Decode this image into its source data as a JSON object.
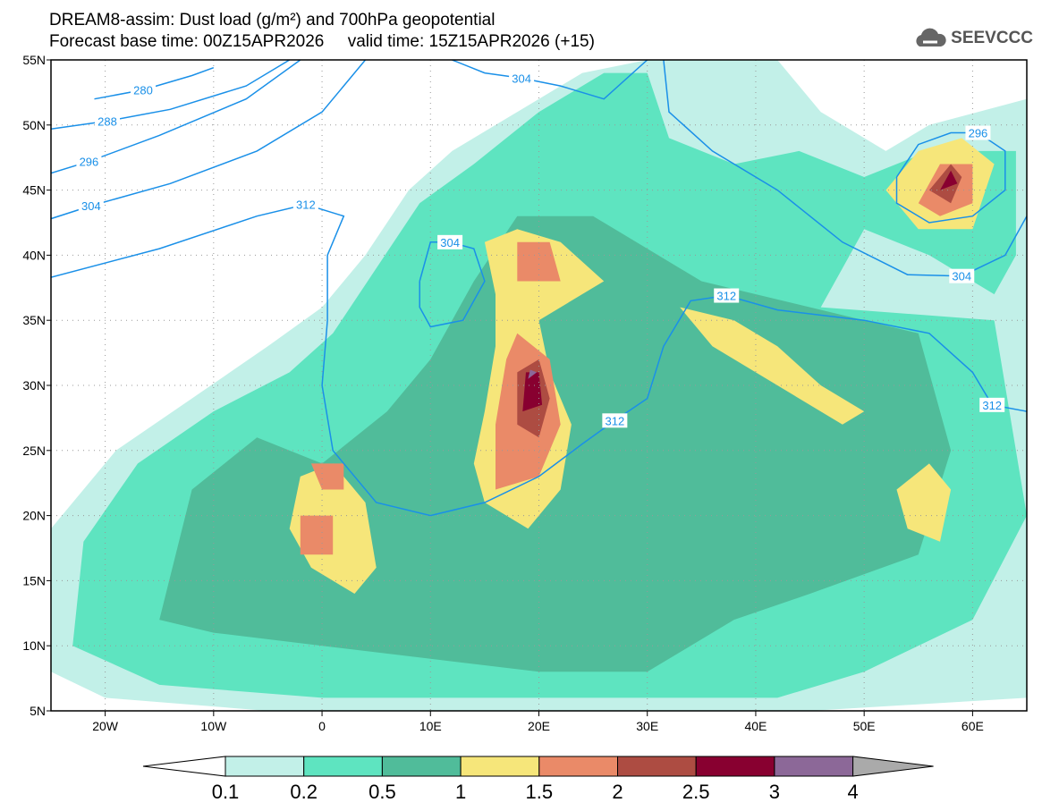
{
  "header": {
    "title": "DREAM8-assim: Dust load (g/m²) and 700hPa geopotential",
    "subtitle": "Forecast base time: 00Z15APR2026     valid time: 15Z15APR2026 (+15)",
    "logo_text": "SEEVCCC"
  },
  "chart_data": {
    "type": "map",
    "lon_range": [
      -25,
      65
    ],
    "lat_range": [
      5,
      55
    ],
    "lat_ticks": [
      {
        "v": 55,
        "l": "55N"
      },
      {
        "v": 50,
        "l": "50N"
      },
      {
        "v": 45,
        "l": "45N"
      },
      {
        "v": 40,
        "l": "40N"
      },
      {
        "v": 35,
        "l": "35N"
      },
      {
        "v": 30,
        "l": "30N"
      },
      {
        "v": 25,
        "l": "25N"
      },
      {
        "v": 20,
        "l": "20N"
      },
      {
        "v": 15,
        "l": "15N"
      },
      {
        "v": 10,
        "l": "10N"
      },
      {
        "v": 5,
        "l": "5N"
      }
    ],
    "lon_ticks": [
      {
        "v": -20,
        "l": "20W"
      },
      {
        "v": -10,
        "l": "10W"
      },
      {
        "v": 0,
        "l": "0"
      },
      {
        "v": 10,
        "l": "10E"
      },
      {
        "v": 20,
        "l": "20E"
      },
      {
        "v": 30,
        "l": "30E"
      },
      {
        "v": 40,
        "l": "40E"
      },
      {
        "v": 50,
        "l": "50E"
      },
      {
        "v": 60,
        "l": "60E"
      }
    ],
    "colorbar": {
      "levels": [
        "0.1",
        "0.2",
        "0.5",
        "1",
        "1.5",
        "2",
        "2.5",
        "3",
        "4"
      ],
      "colors": [
        "#c2f0e8",
        "#5ee4c0",
        "#50bc9a",
        "#f6e67a",
        "#ea8a68",
        "#ad4c42",
        "#880030",
        "#8c6898"
      ],
      "over_color": "#aaaaaa"
    },
    "dust_fields": [
      {
        "level": 0,
        "pts": [
          [
            -25,
            8
          ],
          [
            -25,
            19
          ],
          [
            -19,
            25
          ],
          [
            -12,
            29
          ],
          [
            -5,
            33
          ],
          [
            0,
            36
          ],
          [
            4,
            40
          ],
          [
            8,
            45
          ],
          [
            12,
            48
          ],
          [
            18,
            51
          ],
          [
            24,
            54
          ],
          [
            30,
            55
          ],
          [
            42,
            55
          ],
          [
            46,
            51
          ],
          [
            52,
            48
          ],
          [
            56,
            50
          ],
          [
            65,
            52
          ],
          [
            65,
            6
          ],
          [
            45,
            5
          ],
          [
            36,
            5
          ],
          [
            20,
            5
          ],
          [
            -5,
            5
          ],
          [
            -20,
            6
          ]
        ]
      },
      {
        "level": 1,
        "pts": [
          [
            -23,
            10
          ],
          [
            -22,
            18
          ],
          [
            -17,
            24
          ],
          [
            -10,
            28
          ],
          [
            -3,
            31
          ],
          [
            1,
            34
          ],
          [
            5,
            39
          ],
          [
            9,
            44
          ],
          [
            14,
            47
          ],
          [
            20,
            51
          ],
          [
            26,
            54
          ],
          [
            30,
            54
          ],
          [
            32,
            49
          ],
          [
            38,
            47
          ],
          [
            44,
            48
          ],
          [
            50,
            46
          ],
          [
            56,
            48
          ],
          [
            64,
            48
          ],
          [
            64,
            40
          ],
          [
            62,
            37
          ],
          [
            56,
            40
          ],
          [
            50,
            42
          ],
          [
            46,
            36
          ],
          [
            62,
            35
          ],
          [
            65,
            20
          ],
          [
            60,
            12
          ],
          [
            50,
            8
          ],
          [
            42,
            6
          ],
          [
            35,
            6
          ],
          [
            22,
            6
          ],
          [
            0,
            6
          ],
          [
            -15,
            7
          ]
        ]
      },
      {
        "level": 2,
        "pts": [
          [
            -15,
            12
          ],
          [
            -12,
            22
          ],
          [
            -6,
            26
          ],
          [
            0,
            24
          ],
          [
            6,
            28
          ],
          [
            10,
            32
          ],
          [
            14,
            38
          ],
          [
            18,
            43
          ],
          [
            25,
            43
          ],
          [
            35,
            38
          ],
          [
            45,
            36
          ],
          [
            55,
            34
          ],
          [
            58,
            25
          ],
          [
            55,
            17
          ],
          [
            45,
            14
          ],
          [
            38,
            12
          ],
          [
            30,
            8
          ],
          [
            20,
            8
          ],
          [
            10,
            9
          ],
          [
            0,
            10
          ],
          [
            -10,
            11
          ]
        ]
      },
      {
        "level": 3,
        "pts": [
          [
            15,
            21
          ],
          [
            14,
            24
          ],
          [
            15,
            28
          ],
          [
            16,
            33
          ],
          [
            16,
            37
          ],
          [
            15,
            41
          ],
          [
            18,
            42
          ],
          [
            22,
            41
          ],
          [
            26,
            38
          ],
          [
            20,
            35
          ],
          [
            21,
            31
          ],
          [
            23,
            27
          ],
          [
            22,
            22
          ],
          [
            19,
            19
          ]
        ]
      },
      {
        "level": 3,
        "pts": [
          [
            -2,
            23
          ],
          [
            -3,
            19
          ],
          [
            -1,
            16
          ],
          [
            3,
            14
          ],
          [
            5,
            16
          ],
          [
            4,
            21
          ],
          [
            1,
            24
          ]
        ]
      },
      {
        "level": 3,
        "pts": [
          [
            33,
            36
          ],
          [
            38,
            35
          ],
          [
            42,
            33
          ],
          [
            46,
            30
          ],
          [
            50,
            28
          ],
          [
            48,
            27
          ],
          [
            44,
            29
          ],
          [
            40,
            31
          ],
          [
            36,
            33
          ]
        ]
      },
      {
        "level": 3,
        "pts": [
          [
            52,
            45
          ],
          [
            55,
            48
          ],
          [
            59,
            49
          ],
          [
            62,
            47
          ],
          [
            60,
            42
          ],
          [
            55,
            42
          ]
        ]
      },
      {
        "level": 3,
        "pts": [
          [
            53,
            22
          ],
          [
            56,
            24
          ],
          [
            58,
            22
          ],
          [
            57,
            18
          ],
          [
            54,
            19
          ]
        ]
      },
      {
        "level": 4,
        "pts": [
          [
            16,
            22
          ],
          [
            16,
            27
          ],
          [
            17,
            32
          ],
          [
            18,
            34
          ],
          [
            21,
            32
          ],
          [
            22,
            27
          ],
          [
            20,
            23
          ]
        ]
      },
      {
        "level": 4,
        "pts": [
          [
            -2,
            20
          ],
          [
            -2,
            17
          ],
          [
            1,
            17
          ],
          [
            1,
            20
          ]
        ]
      },
      {
        "level": 4,
        "pts": [
          [
            -1,
            24
          ],
          [
            0,
            22
          ],
          [
            2,
            22
          ],
          [
            2,
            24
          ]
        ]
      },
      {
        "level": 4,
        "pts": [
          [
            18,
            38
          ],
          [
            18,
            41
          ],
          [
            21,
            41
          ],
          [
            22,
            38
          ]
        ]
      },
      {
        "level": 4,
        "pts": [
          [
            55,
            44
          ],
          [
            57,
            47
          ],
          [
            60,
            47
          ],
          [
            60,
            44
          ],
          [
            57,
            43
          ]
        ]
      },
      {
        "level": 5,
        "pts": [
          [
            18,
            27
          ],
          [
            18,
            31
          ],
          [
            20,
            32
          ],
          [
            21,
            29
          ],
          [
            20,
            26
          ]
        ]
      },
      {
        "level": 5,
        "pts": [
          [
            56,
            45
          ],
          [
            58,
            47
          ],
          [
            59,
            46
          ],
          [
            58,
            44
          ]
        ]
      },
      {
        "level": 6,
        "pts": [
          [
            18.5,
            28
          ],
          [
            18.8,
            31
          ],
          [
            20,
            31
          ],
          [
            20.3,
            28.5
          ]
        ]
      },
      {
        "level": 6,
        "pts": [
          [
            57,
            45
          ],
          [
            58,
            46.5
          ],
          [
            58.6,
            45.5
          ]
        ]
      },
      {
        "level": 7,
        "pts": [
          [
            19,
            30.5
          ],
          [
            19.2,
            31.2
          ],
          [
            19.8,
            31
          ]
        ]
      }
    ],
    "contours": [
      {
        "value": "280",
        "label_at": [
          -16.5,
          52.7
        ],
        "pts": [
          [
            -21,
            52
          ],
          [
            -16.5,
            52.7
          ],
          [
            -12,
            53.8
          ],
          [
            -10,
            54.4
          ]
        ]
      },
      {
        "value": "288",
        "label_at": [
          -19.8,
          50.3
        ],
        "pts": [
          [
            -25,
            49.7
          ],
          [
            -19.8,
            50.3
          ],
          [
            -14,
            51.2
          ],
          [
            -7,
            53
          ],
          [
            -3,
            55
          ]
        ]
      },
      {
        "value": "296",
        "label_at": [
          -21.5,
          47.2
        ],
        "pts": [
          [
            -25,
            46.3
          ],
          [
            -21.5,
            47.2
          ],
          [
            -15,
            49.2
          ],
          [
            -7,
            52
          ],
          [
            -2,
            55
          ]
        ]
      },
      {
        "value": "304",
        "label_at": [
          -21.3,
          43.8
        ],
        "pts": [
          [
            -25,
            42.8
          ],
          [
            -21.3,
            43.8
          ],
          [
            -14,
            45.5
          ],
          [
            -6,
            48
          ],
          [
            0,
            51
          ],
          [
            4,
            55
          ]
        ]
      },
      {
        "value": "312",
        "label_at": [
          -1.5,
          43.9
        ],
        "pts": [
          [
            -25,
            38.3
          ],
          [
            -15,
            40.5
          ],
          [
            -6,
            43
          ],
          [
            -1.5,
            43.9
          ],
          [
            2,
            43
          ],
          [
            0.5,
            40
          ],
          [
            0.5,
            35
          ],
          [
            0,
            30
          ],
          [
            1,
            25
          ],
          [
            5,
            21
          ],
          [
            10,
            20
          ],
          [
            15,
            21
          ],
          [
            20,
            23
          ],
          [
            24,
            25.5
          ],
          [
            27,
            27.3
          ],
          [
            30,
            29
          ],
          [
            31.5,
            33
          ],
          [
            34,
            36.5
          ],
          [
            37.3,
            36.9
          ],
          [
            42,
            35.8
          ],
          [
            50,
            35
          ],
          [
            56,
            34
          ],
          [
            60,
            31
          ],
          [
            61.8,
            28.5
          ],
          [
            65,
            28
          ]
        ]
      },
      {
        "value": "304",
        "label_at": [
          11.8,
          41
        ],
        "pts": [
          [
            9,
            38
          ],
          [
            10,
            41
          ],
          [
            11.8,
            41
          ],
          [
            14,
            40.5
          ],
          [
            15,
            38
          ],
          [
            13,
            35
          ],
          [
            10,
            34.5
          ],
          [
            9,
            36
          ],
          [
            9,
            38
          ]
        ]
      },
      {
        "value": "304",
        "label_at": [
          18.4,
          53.6
        ],
        "pts": [
          [
            12,
            55
          ],
          [
            15,
            54
          ],
          [
            18.4,
            53.6
          ],
          [
            22,
            53
          ],
          [
            26,
            52
          ],
          [
            30,
            55
          ]
        ]
      },
      {
        "value": "304",
        "label_at": [
          59,
          38.4
        ],
        "pts": [
          [
            31.5,
            55
          ],
          [
            32,
            51
          ],
          [
            36,
            48
          ],
          [
            42,
            45
          ],
          [
            48,
            41
          ],
          [
            54,
            38.5
          ],
          [
            59,
            38.4
          ],
          [
            63,
            40
          ],
          [
            65,
            43
          ]
        ]
      },
      {
        "value": "296",
        "label_at": [
          60.5,
          49.4
        ],
        "pts": [
          [
            53,
            46
          ],
          [
            55,
            48.5
          ],
          [
            58,
            49.4
          ],
          [
            60.5,
            49.4
          ],
          [
            63,
            48
          ],
          [
            63,
            45
          ],
          [
            60,
            43
          ],
          [
            56,
            42.5
          ],
          [
            53,
            44
          ],
          [
            53,
            46
          ]
        ]
      },
      {
        "value": "312",
        "label_at": [
          27,
          27.3
        ],
        "pts": []
      },
      {
        "value": "312",
        "label_at": [
          37.3,
          36.9
        ],
        "pts": []
      },
      {
        "value": "312",
        "label_at": [
          61.8,
          28.5
        ],
        "pts": []
      }
    ]
  }
}
